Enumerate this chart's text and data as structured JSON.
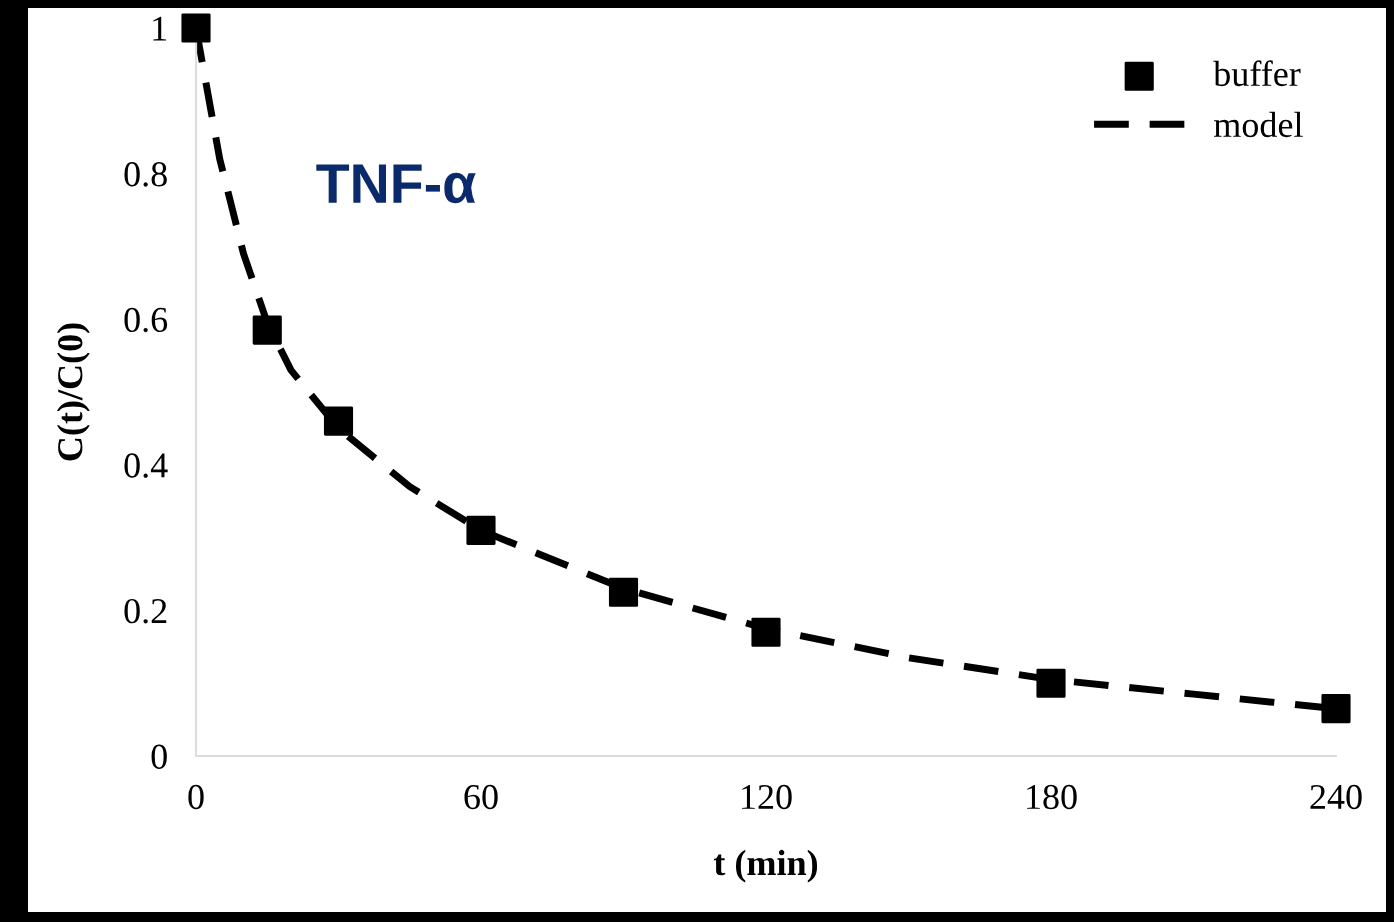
{
  "chart_data": {
    "type": "scatter",
    "xlabel": "t (min)",
    "ylabel": "C(t)/C(0)",
    "annotations": [
      "TNF-α"
    ],
    "xlim": [
      0,
      240
    ],
    "xticks": [
      0,
      60,
      120,
      180,
      240
    ],
    "ylim": [
      0,
      1
    ],
    "yticks": [
      0,
      0.2,
      0.4,
      0.6,
      0.8,
      1
    ],
    "grid": false,
    "legend": "top right",
    "series": [
      {
        "name": "buffer",
        "marker": "square",
        "color": "#000000",
        "x": [
          0,
          15,
          30,
          60,
          90,
          120,
          180,
          240
        ],
        "values": [
          1.0,
          0.585,
          0.46,
          0.31,
          0.225,
          0.17,
          0.1,
          0.065
        ]
      },
      {
        "name": "model",
        "type": "line",
        "line_style": "dashed",
        "marker": "none",
        "color": "#000000",
        "x": [
          0,
          5,
          10,
          15,
          20,
          30,
          45,
          60,
          90,
          120,
          150,
          180,
          210,
          240
        ],
        "values": [
          1.0,
          0.82,
          0.69,
          0.595,
          0.53,
          0.45,
          0.37,
          0.31,
          0.23,
          0.175,
          0.135,
          0.105,
          0.085,
          0.065
        ]
      }
    ]
  }
}
